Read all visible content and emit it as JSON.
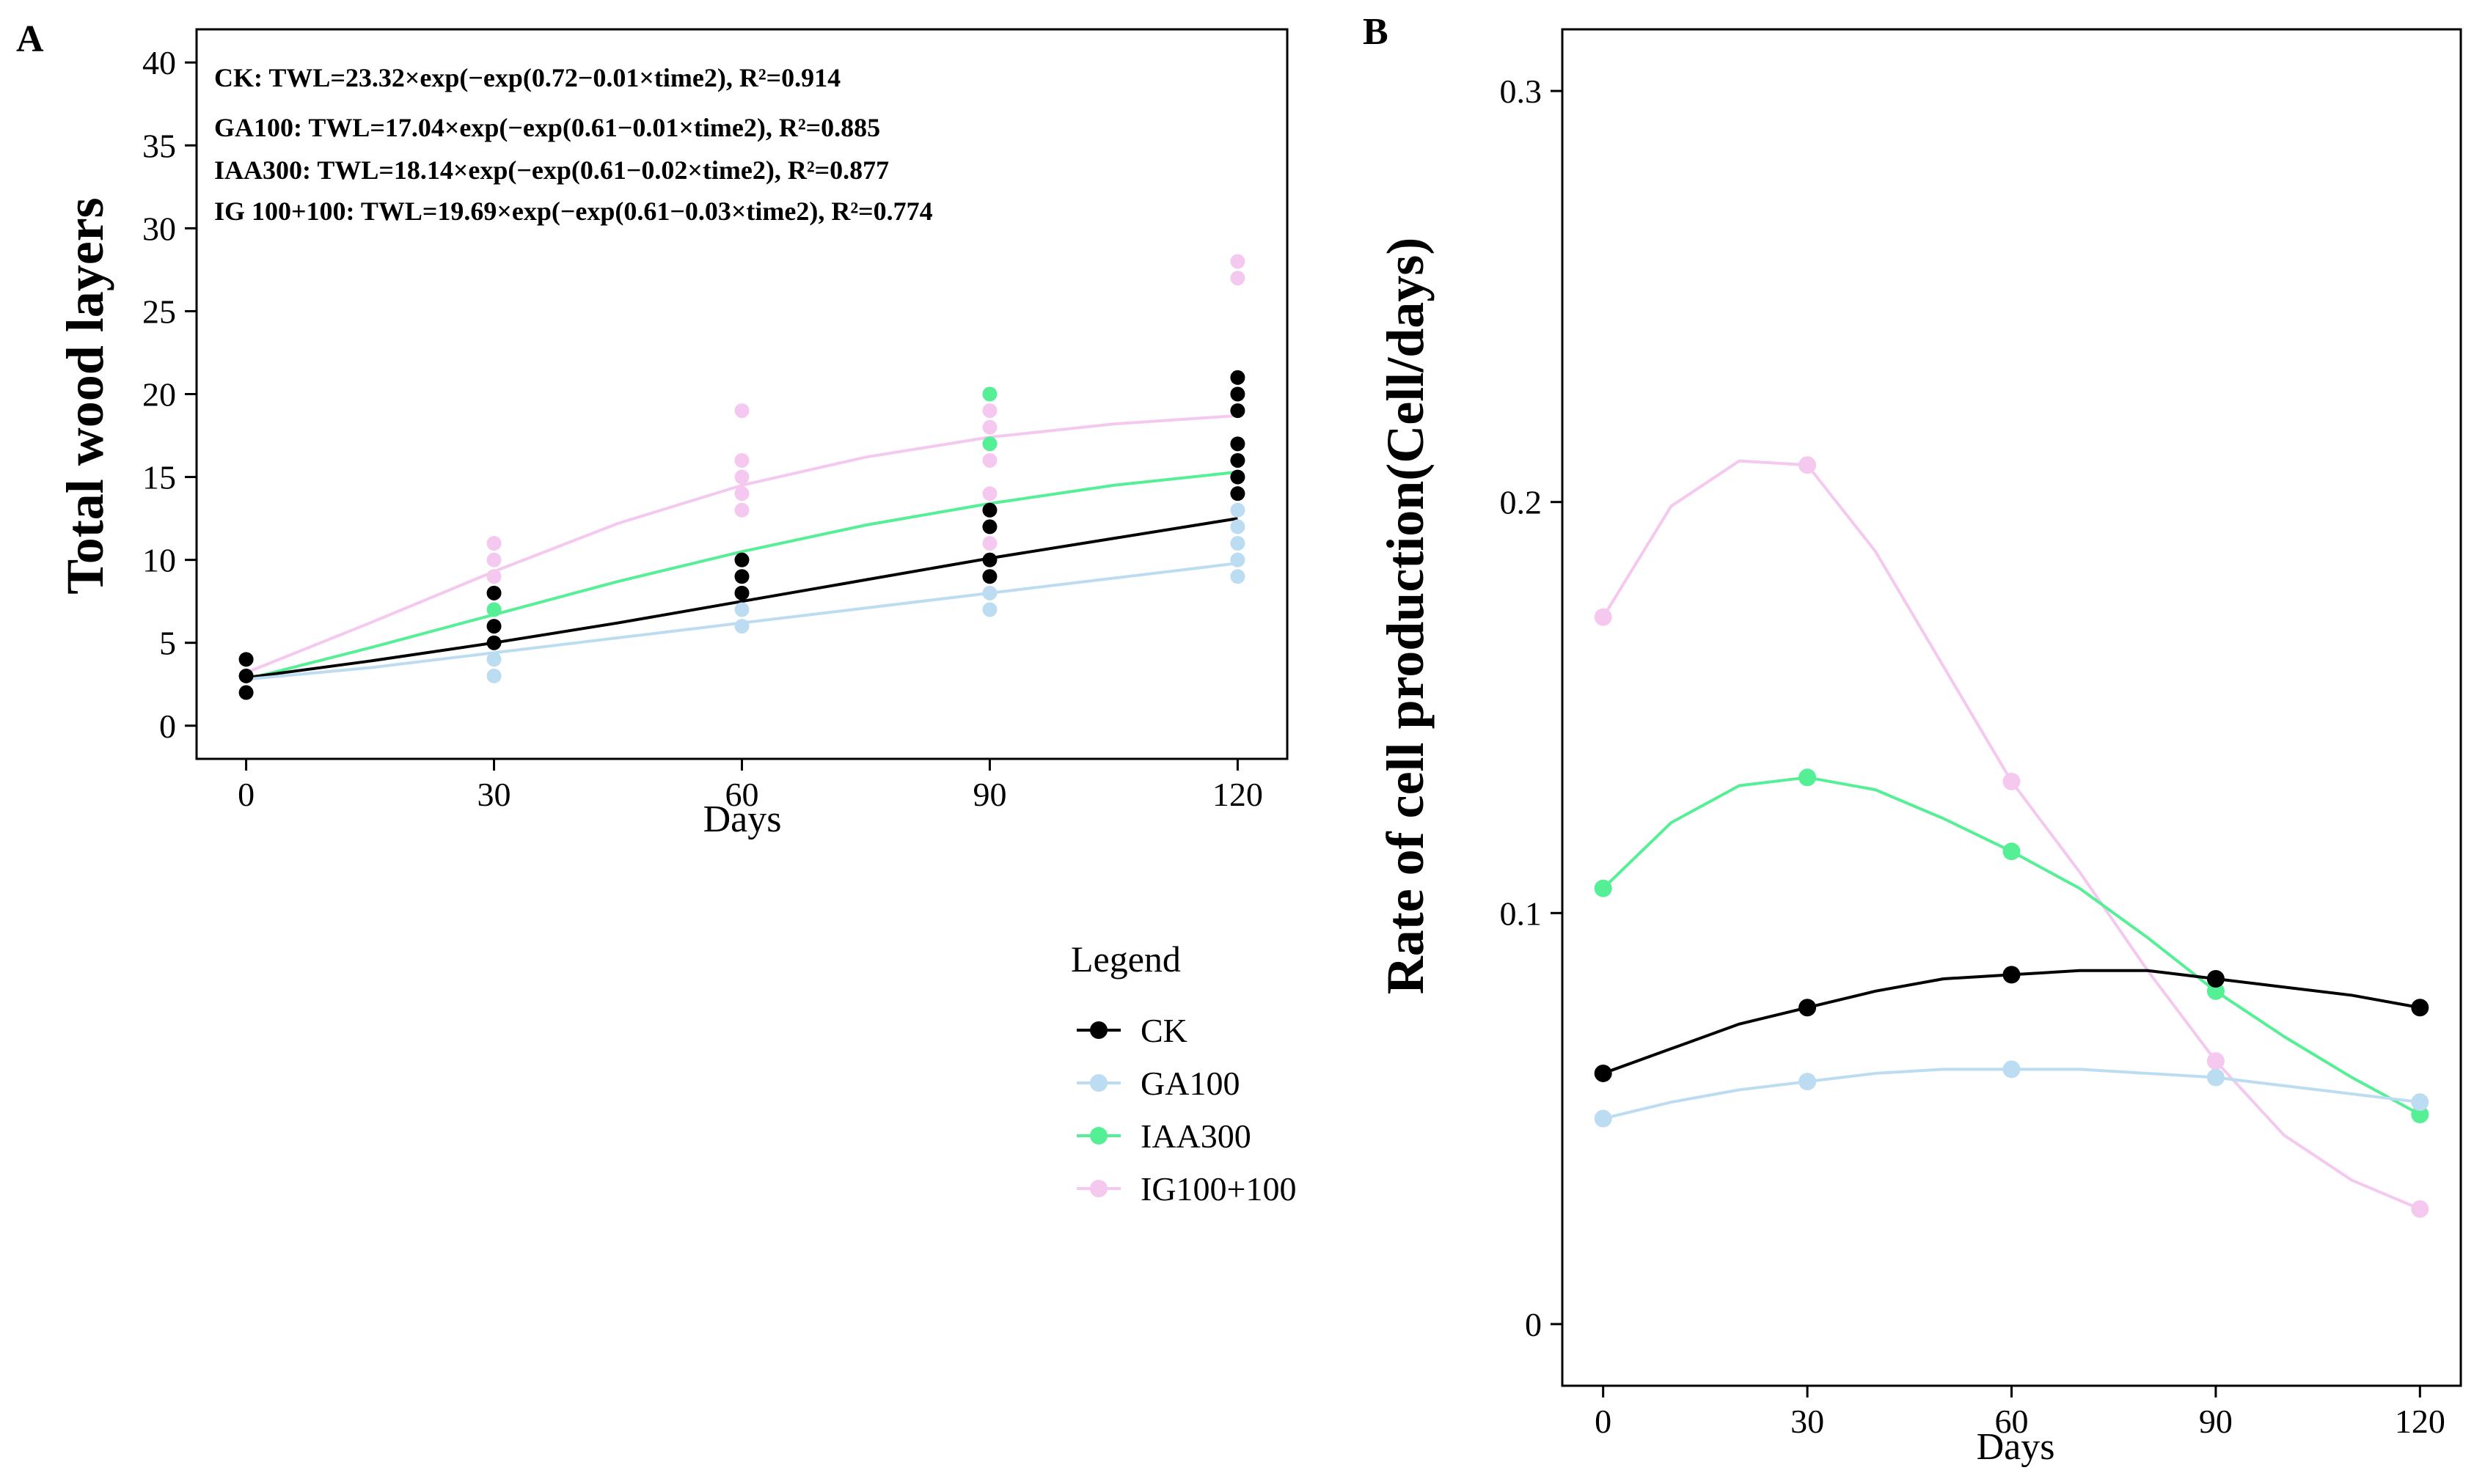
{
  "colors": {
    "CK": "#000000",
    "GA100": "#bcdcf2",
    "IAA300": "#55ef95",
    "IG100+100": "#f5c8ef"
  },
  "legend": {
    "title": "Legend",
    "items": [
      "CK",
      "GA100",
      "IAA300",
      "IG100+100"
    ]
  },
  "chart_data": [
    {
      "panel": "A",
      "type": "scatter",
      "title": "",
      "xlabel": "Days",
      "ylabel": "Total wood layers",
      "xlim": [
        -6,
        126
      ],
      "ylim": [
        -2,
        42
      ],
      "x_ticks": [
        0,
        30,
        60,
        90,
        120
      ],
      "y_ticks": [
        0,
        5,
        10,
        15,
        20,
        25,
        30,
        35,
        40
      ],
      "equations": [
        "CK: TWL=23.32×exp(−exp(0.72−0.01×time2), R²=0.914",
        "GA100: TWL=17.04×exp(−exp(0.61−0.01×time2), R²=0.885",
        "IAA300: TWL=18.14×exp(−exp(0.61−0.02×time2), R²=0.877",
        "IG 100+100: TWL=19.69×exp(−exp(0.61−0.03×time2), R²=0.774"
      ],
      "points": [
        {
          "series": "IG100+100",
          "x": 30,
          "y": [
            9,
            10,
            11
          ]
        },
        {
          "series": "IG100+100",
          "x": 60,
          "y": [
            13,
            14,
            15,
            16,
            19
          ]
        },
        {
          "series": "IG100+100",
          "x": 90,
          "y": [
            11,
            14,
            16,
            18,
            19
          ]
        },
        {
          "series": "IG100+100",
          "x": 120,
          "y": [
            27,
            28
          ]
        },
        {
          "series": "GA100",
          "x": 0,
          "y": [
            3
          ]
        },
        {
          "series": "GA100",
          "x": 30,
          "y": [
            3,
            4
          ]
        },
        {
          "series": "GA100",
          "x": 60,
          "y": [
            6,
            7
          ]
        },
        {
          "series": "GA100",
          "x": 90,
          "y": [
            7,
            8
          ]
        },
        {
          "series": "GA100",
          "x": 120,
          "y": [
            9,
            10,
            11,
            12,
            13
          ]
        },
        {
          "series": "IAA300",
          "x": 30,
          "y": [
            7
          ]
        },
        {
          "series": "IAA300",
          "x": 90,
          "y": [
            17,
            20
          ]
        },
        {
          "series": "CK",
          "x": 0,
          "y": [
            2,
            3,
            4
          ]
        },
        {
          "series": "CK",
          "x": 30,
          "y": [
            5,
            6,
            8
          ]
        },
        {
          "series": "CK",
          "x": 60,
          "y": [
            8,
            9,
            10
          ]
        },
        {
          "series": "CK",
          "x": 90,
          "y": [
            9,
            10,
            12,
            13
          ]
        },
        {
          "series": "CK",
          "x": 120,
          "y": [
            14,
            15,
            16,
            17,
            19,
            20,
            21
          ]
        }
      ],
      "fit_lines": [
        {
          "series": "IG100+100",
          "x": [
            0,
            15,
            30,
            45,
            60,
            75,
            90,
            105,
            120
          ],
          "y": [
            3.2,
            6.2,
            9.3,
            12.2,
            14.5,
            16.2,
            17.4,
            18.2,
            18.7
          ]
        },
        {
          "series": "IAA300",
          "x": [
            0,
            15,
            30,
            45,
            60,
            75,
            90,
            105,
            120
          ],
          "y": [
            2.8,
            4.7,
            6.7,
            8.7,
            10.5,
            12.1,
            13.4,
            14.5,
            15.3
          ]
        },
        {
          "series": "CK",
          "x": [
            0,
            15,
            30,
            45,
            60,
            75,
            90,
            105,
            120
          ],
          "y": [
            2.9,
            3.9,
            5.0,
            6.2,
            7.5,
            8.8,
            10.1,
            11.3,
            12.5
          ]
        },
        {
          "series": "GA100",
          "x": [
            0,
            15,
            30,
            45,
            60,
            75,
            90,
            105,
            120
          ],
          "y": [
            2.8,
            3.5,
            4.4,
            5.3,
            6.2,
            7.1,
            8.0,
            8.9,
            9.8
          ]
        }
      ]
    },
    {
      "panel": "B",
      "type": "line",
      "title": "",
      "xlabel": "Days",
      "ylabel": "Rate of cell production(Cell/days)",
      "xlim": [
        -6,
        126
      ],
      "ylim": [
        -0.015,
        0.315
      ],
      "x_ticks": [
        0,
        30,
        60,
        90,
        120
      ],
      "y_ticks": [
        0,
        0.1,
        0.2,
        0.3
      ],
      "y_tick_labels": [
        "0",
        "0.1",
        "0.2",
        "0.3"
      ],
      "categories": [
        0,
        30,
        60,
        90,
        120
      ],
      "series": [
        {
          "name": "IG100+100",
          "values": [
            0.172,
            0.209,
            0.132,
            0.064,
            0.028
          ],
          "curve_x": [
            0,
            10,
            20,
            30,
            40,
            50,
            60,
            70,
            80,
            90,
            100,
            110,
            120
          ],
          "curve_y": [
            0.172,
            0.199,
            0.21,
            0.209,
            0.188,
            0.16,
            0.132,
            0.11,
            0.086,
            0.064,
            0.046,
            0.035,
            0.028
          ]
        },
        {
          "name": "IAA300",
          "values": [
            0.106,
            0.133,
            0.115,
            0.081,
            0.051
          ],
          "curve_x": [
            0,
            10,
            20,
            30,
            40,
            50,
            60,
            70,
            80,
            90,
            100,
            110,
            120
          ],
          "curve_y": [
            0.106,
            0.122,
            0.131,
            0.133,
            0.13,
            0.123,
            0.115,
            0.106,
            0.094,
            0.081,
            0.07,
            0.06,
            0.051
          ]
        },
        {
          "name": "CK",
          "values": [
            0.061,
            0.077,
            0.085,
            0.084,
            0.077
          ],
          "curve_x": [
            0,
            10,
            20,
            30,
            40,
            50,
            60,
            70,
            80,
            90,
            100,
            110,
            120
          ],
          "curve_y": [
            0.061,
            0.067,
            0.073,
            0.077,
            0.081,
            0.084,
            0.085,
            0.086,
            0.086,
            0.084,
            0.082,
            0.08,
            0.077
          ]
        },
        {
          "name": "GA100",
          "values": [
            0.05,
            0.059,
            0.062,
            0.06,
            0.054
          ],
          "curve_x": [
            0,
            10,
            20,
            30,
            40,
            50,
            60,
            70,
            80,
            90,
            100,
            110,
            120
          ],
          "curve_y": [
            0.05,
            0.054,
            0.057,
            0.059,
            0.061,
            0.062,
            0.062,
            0.062,
            0.061,
            0.06,
            0.058,
            0.056,
            0.054
          ]
        }
      ]
    }
  ]
}
